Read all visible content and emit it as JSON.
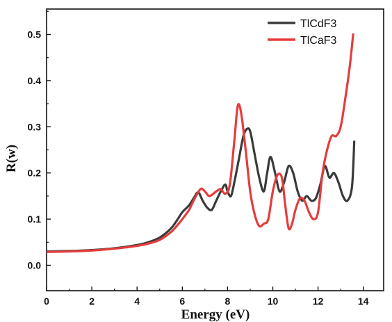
{
  "chart_data": {
    "type": "line",
    "title": "",
    "xlabel": "Energy (eV)",
    "ylabel": "R(w)",
    "xlim": [
      0,
      14.9
    ],
    "ylim": [
      -0.055,
      0.555
    ],
    "xticks": [
      0,
      2,
      4,
      6,
      8,
      10,
      12,
      14
    ],
    "yticks": [
      0.0,
      0.1,
      0.2,
      0.3,
      0.4,
      0.5
    ],
    "xtick_labels": [
      "0",
      "2",
      "4",
      "6",
      "8",
      "10",
      "12",
      "14"
    ],
    "ytick_labels": [
      "0.0",
      "0.1",
      "0.2",
      "0.3",
      "0.4",
      "0.5"
    ],
    "grid": false,
    "legend_position": "top-right",
    "series": [
      {
        "name": "TlCdF3",
        "color": "#3a3a3a",
        "x": [
          0,
          1,
          2,
          3,
          4,
          4.5,
          5,
          5.5,
          5.8,
          6.0,
          6.3,
          6.5,
          6.7,
          6.9,
          7.1,
          7.3,
          7.5,
          7.7,
          7.9,
          8.0,
          8.15,
          8.3,
          8.5,
          8.7,
          8.85,
          9.0,
          9.2,
          9.4,
          9.6,
          9.75,
          9.9,
          10.1,
          10.3,
          10.5,
          10.7,
          10.9,
          11.1,
          11.3,
          11.5,
          11.7,
          11.9,
          12.1,
          12.3,
          12.5,
          12.7,
          12.9,
          13.1,
          13.3,
          13.5,
          13.6
        ],
        "y": [
          0.03,
          0.031,
          0.033,
          0.037,
          0.044,
          0.05,
          0.06,
          0.08,
          0.1,
          0.115,
          0.13,
          0.145,
          0.158,
          0.14,
          0.125,
          0.12,
          0.14,
          0.16,
          0.175,
          0.16,
          0.15,
          0.18,
          0.23,
          0.28,
          0.295,
          0.29,
          0.24,
          0.19,
          0.16,
          0.2,
          0.235,
          0.2,
          0.16,
          0.18,
          0.215,
          0.2,
          0.16,
          0.14,
          0.15,
          0.14,
          0.145,
          0.175,
          0.215,
          0.19,
          0.2,
          0.18,
          0.15,
          0.14,
          0.17,
          0.268
        ]
      },
      {
        "name": "TlCaF3",
        "color": "#e53c3c",
        "x": [
          0,
          1,
          2,
          3,
          4,
          4.5,
          5,
          5.5,
          5.8,
          6.0,
          6.3,
          6.5,
          6.8,
          7.0,
          7.2,
          7.5,
          7.7,
          7.9,
          8.1,
          8.3,
          8.45,
          8.6,
          8.8,
          9.0,
          9.2,
          9.4,
          9.6,
          9.8,
          10.0,
          10.2,
          10.4,
          10.55,
          10.7,
          10.85,
          11.0,
          11.2,
          11.4,
          11.6,
          11.8,
          12.0,
          12.2,
          12.4,
          12.6,
          12.8,
          13.0,
          13.2,
          13.4,
          13.55
        ],
        "y": [
          0.029,
          0.03,
          0.032,
          0.036,
          0.042,
          0.047,
          0.055,
          0.072,
          0.088,
          0.1,
          0.12,
          0.14,
          0.165,
          0.16,
          0.15,
          0.16,
          0.165,
          0.155,
          0.175,
          0.27,
          0.345,
          0.33,
          0.25,
          0.16,
          0.11,
          0.085,
          0.09,
          0.1,
          0.16,
          0.195,
          0.19,
          0.13,
          0.08,
          0.09,
          0.12,
          0.145,
          0.14,
          0.115,
          0.1,
          0.115,
          0.2,
          0.25,
          0.28,
          0.28,
          0.3,
          0.36,
          0.43,
          0.5
        ]
      }
    ]
  }
}
